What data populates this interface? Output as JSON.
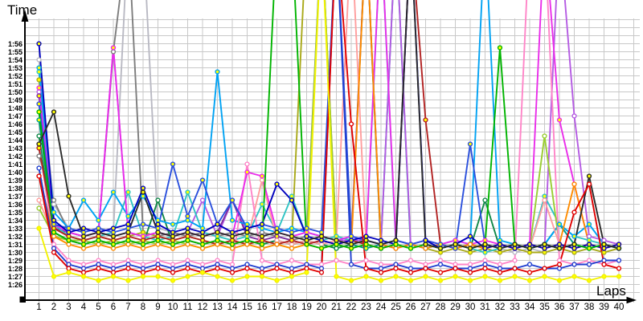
{
  "titles": {
    "y_axis": "Time",
    "x_axis": "Laps"
  },
  "colors": {
    "background": "#ffffff",
    "grid": "#c8c8c8",
    "axis": "#000000"
  },
  "chart_data": {
    "type": "line",
    "title": "",
    "xlabel": "Laps",
    "ylabel": "Time",
    "x_axis": {
      "min": 1,
      "max": 40,
      "tick_step": 1
    },
    "y_axis": {
      "unit": "m:ss",
      "min_seconds": 86,
      "max_seconds": 116,
      "min_label": "1:26",
      "max_label": "1:56",
      "grid_step_seconds": 1
    },
    "off_scale_value": 130,
    "grid": true,
    "legend": "none",
    "x_tick_labels": [
      "1",
      "2",
      "3",
      "4",
      "5",
      "6",
      "7",
      "8",
      "9",
      "10",
      "11",
      "12",
      "13",
      "14",
      "15",
      "16",
      "17",
      "18",
      "19",
      "20",
      "21",
      "22",
      "23",
      "24",
      "25",
      "26",
      "27",
      "28",
      "29",
      "30",
      "31",
      "32",
      "33",
      "34",
      "35",
      "36",
      "37",
      "38",
      "39",
      "40"
    ],
    "y_tick_labels": [
      "1:26",
      "1:27",
      "1:28",
      "1:29",
      "1:30",
      "1:31",
      "1:32",
      "1:33",
      "1:34",
      "1:35",
      "1:36",
      "1:37",
      "1:38",
      "1:39",
      "1:40",
      "1:41",
      "1:42",
      "1:43",
      "1:44",
      "1:45",
      "1:46",
      "1:47",
      "1:48",
      "1:49",
      "1:50",
      "1:51",
      "1:52",
      "1:53",
      "1:54",
      "1:55",
      "1:56"
    ],
    "series": [
      {
        "name": "silver",
        "color": "#b9b9c3",
        "marker_fill": "#ffffff",
        "values_seconds": [
          114,
          96,
          93,
          92.5,
          93,
          92.5,
          130,
          130,
          93,
          92.5,
          92,
          92.5,
          92,
          91.5,
          92,
          91.5,
          91,
          91.5,
          91,
          90.5,
          91,
          91.5,
          91,
          90.5,
          91,
          90.5,
          91,
          90.5,
          91,
          90.5,
          90,
          90.5,
          90,
          90.5,
          90,
          90.5,
          90,
          90.5,
          90,
          90.5
        ]
      },
      {
        "name": "gray",
        "color": "#7d7d7d",
        "marker_fill": "#ffffff",
        "values_seconds": [
          102,
          96.5,
          92.5,
          92,
          92.5,
          115,
          130,
          92.5,
          92,
          92.5,
          92,
          92.5,
          92,
          92.5,
          92,
          92.5,
          92,
          91.5,
          92,
          130,
          91.5,
          91,
          91.5,
          91,
          91.5,
          91,
          91.5,
          91,
          90.5,
          91,
          90.5,
          91,
          90.5,
          91,
          90.5,
          91,
          90.5,
          91,
          90.5,
          91
        ]
      },
      {
        "name": "olive",
        "color": "#a9a919",
        "marker_fill": "#ffff00",
        "values_seconds": [
          111.5,
          93,
          92,
          91.5,
          92,
          91.5,
          92,
          92.5,
          92,
          91.5,
          92,
          91.5,
          91,
          91.5,
          91,
          91.5,
          91,
          91.5,
          130,
          130,
          91.5,
          91,
          90.5,
          91,
          90.5,
          91,
          90.5,
          90,
          90.5,
          90,
          90.5,
          90,
          90.5,
          90,
          90,
          90.5,
          90,
          90.5,
          90,
          90.5
        ]
      },
      {
        "name": "teal",
        "color": "#009b8f",
        "marker_fill": "#ffff00",
        "values_seconds": [
          106.5,
          92.5,
          91.5,
          91,
          91.5,
          91,
          91.5,
          91,
          91.5,
          91,
          91.5,
          91,
          91.5,
          91,
          91.5,
          91,
          91.5,
          91,
          91.5,
          91,
          90.5,
          91,
          90.5,
          91,
          130,
          90.5,
          91,
          90.5,
          91,
          90.5,
          91,
          90.5,
          91,
          90.5,
          91,
          93.5,
          91,
          90.5,
          91,
          90.5
        ]
      },
      {
        "name": "darkgreen",
        "color": "#108848",
        "marker_fill": "#ffffff",
        "values_seconds": [
          104.5,
          92,
          91.5,
          91,
          91.5,
          91,
          91.5,
          91,
          96.5,
          91,
          91.5,
          91,
          91.5,
          91,
          91.5,
          91,
          91.5,
          91,
          91.5,
          91,
          90.5,
          91,
          130,
          90.5,
          91,
          90.5,
          91,
          90.5,
          91,
          90.5,
          96.5,
          90.5,
          91,
          90.5,
          91,
          90.5,
          91,
          90.5,
          91,
          90.5
        ]
      },
      {
        "name": "orchid",
        "color": "#b55ce3",
        "marker_fill": "#ffffff",
        "values_seconds": [
          110,
          93,
          92.5,
          92,
          92.5,
          115.5,
          92.5,
          92,
          92.5,
          92,
          92.5,
          96.5,
          92,
          96.5,
          92.5,
          92,
          92.5,
          92,
          92.5,
          92,
          91.5,
          91.5,
          91.5,
          91,
          130,
          91,
          90.5,
          91,
          90.5,
          91,
          90.5,
          91,
          90.5,
          91,
          90.5,
          130,
          107,
          92,
          91.5,
          91
        ]
      },
      {
        "name": "purple",
        "color": "#7e2ea0",
        "marker_fill": "#ffff00",
        "values_seconds": [
          109.5,
          93,
          92.5,
          92,
          92.5,
          92,
          92.5,
          92,
          92.5,
          92,
          92.5,
          92,
          92.5,
          96.5,
          92,
          91.5,
          92,
          91.5,
          91,
          91.5,
          91,
          91.5,
          130,
          91,
          90.5,
          91,
          90.5,
          91,
          90.5,
          91,
          90.5,
          91,
          90.5,
          91,
          90.5,
          91,
          90.5,
          91,
          90.5,
          91
        ]
      },
      {
        "name": "turquoise",
        "color": "#2fc4c4",
        "marker_fill": "#ffff00",
        "values_seconds": [
          112.5,
          93.5,
          92,
          91.5,
          92,
          92.5,
          97.5,
          92,
          91.5,
          92,
          97.5,
          92.5,
          92,
          91.5,
          92,
          96,
          92.5,
          97,
          92,
          91.5,
          92,
          91.5,
          91,
          130,
          91,
          90.5,
          91,
          90.5,
          91,
          90.5,
          90,
          90.5,
          91,
          90.5,
          97,
          93.5,
          92,
          91.5,
          91,
          90.5
        ]
      },
      {
        "name": "deepskyblue",
        "color": "#00a2f3",
        "marker_fill": "#ffff00",
        "values_seconds": [
          113,
          95,
          93,
          96.5,
          94,
          97.5,
          94.5,
          97,
          94,
          93.5,
          94,
          93,
          112.5,
          94,
          93.5,
          93,
          92.5,
          93,
          92.5,
          92,
          91.5,
          92,
          91.5,
          91,
          91.5,
          91,
          90.5,
          91,
          91.5,
          91,
          130,
          91.5,
          91,
          90.5,
          91,
          93.5,
          92,
          93.5,
          91,
          90.5
        ]
      },
      {
        "name": "salmon",
        "color": "#ff9e9e",
        "marker_fill": "#ffffff",
        "values_seconds": [
          96.5,
          92,
          91.5,
          91,
          91.5,
          91,
          91.5,
          91,
          91.5,
          91,
          91.5,
          91,
          91.5,
          91,
          91.5,
          99,
          91.5,
          91,
          91.5,
          91,
          91.5,
          130,
          91,
          90.5,
          91,
          90.5,
          91,
          90.5,
          91,
          90.5,
          91,
          90.5,
          91,
          90.5,
          96.5,
          91,
          90.5,
          91,
          90.5,
          91
        ]
      },
      {
        "name": "yellowgreen",
        "color": "#9acd32",
        "marker_fill": "#ffffff",
        "values_seconds": [
          95.5,
          92,
          91.5,
          91.5,
          91,
          91.5,
          91,
          91.5,
          91,
          91.5,
          91,
          90.5,
          91,
          90.5,
          91,
          90.5,
          91,
          90.5,
          91,
          130,
          91,
          90.5,
          91,
          90.5,
          91,
          90.5,
          91,
          90.5,
          91,
          90.5,
          91,
          90.5,
          91,
          90.5,
          104.5,
          91,
          90.5,
          91,
          90.5,
          91
        ]
      },
      {
        "name": "pink",
        "color": "#ff85c8",
        "marker_fill": "#ffffff",
        "values_seconds": [
          103.5,
          91,
          89,
          88.5,
          89,
          88.5,
          89,
          88.5,
          89,
          88.5,
          89,
          88.5,
          89,
          88.5,
          101,
          89,
          88.5,
          89,
          88.5,
          88.5,
          89,
          88.5,
          89,
          88.5,
          88.5,
          89,
          88.5,
          89,
          88.5,
          88.5,
          89,
          88.5,
          89,
          130,
          130,
          89,
          88.5,
          89,
          88.5,
          89
        ]
      },
      {
        "name": "magenta",
        "color": "#ea2dea",
        "marker_fill": "#ffff00",
        "values_seconds": [
          110.5,
          93.5,
          92.5,
          92,
          92.5,
          115.5,
          92.5,
          92,
          92.5,
          92,
          92.5,
          92,
          92.5,
          92,
          100,
          99.5,
          92.5,
          92,
          92.5,
          92,
          91.5,
          92,
          91.5,
          130,
          91.5,
          91,
          91.5,
          91,
          91.5,
          91,
          91.5,
          91,
          90.5,
          91,
          130,
          106.5,
          98.5,
          91,
          90.5,
          91
        ]
      },
      {
        "name": "firebrick",
        "color": "#b22222",
        "marker_fill": "#ffff00",
        "values_seconds": [
          103,
          93,
          92,
          91.5,
          92,
          91.5,
          92,
          91.5,
          92,
          91.5,
          92,
          91.5,
          91,
          91.5,
          91,
          91.5,
          91,
          91.5,
          91,
          91.5,
          91,
          91.5,
          91,
          90.5,
          91,
          130,
          106.5,
          91,
          90.5,
          91,
          90.5,
          91,
          90.5,
          91,
          90.5,
          91,
          90.5,
          91,
          90.5,
          91
        ]
      },
      {
        "name": "orange",
        "color": "#ff8c00",
        "marker_fill": "#ffffff",
        "values_seconds": [
          99.5,
          92,
          91,
          90.5,
          91,
          90.5,
          91,
          90.5,
          91,
          90.5,
          91,
          90.5,
          91,
          90.5,
          91,
          90.5,
          91,
          90.5,
          91,
          90.5,
          91,
          90.5,
          130,
          91,
          90.5,
          91,
          90.5,
          91,
          90.5,
          91,
          90.5,
          91,
          90.5,
          91,
          90.5,
          91,
          98.5,
          91,
          90.5,
          91
        ]
      },
      {
        "name": "royalblue",
        "color": "#2b50dd",
        "marker_fill": "#ffff00",
        "values_seconds": [
          108.5,
          93.5,
          93,
          92.5,
          93,
          92.5,
          93,
          93.5,
          93,
          101,
          94.5,
          99,
          93.5,
          96.5,
          93,
          93.5,
          93,
          92.5,
          93,
          92.5,
          130,
          92,
          91.5,
          91,
          91.5,
          91,
          91.5,
          91,
          90.5,
          103.5,
          91,
          90.5,
          91,
          90.5,
          91,
          90.5,
          91,
          90.5,
          91,
          90.5
        ]
      },
      {
        "name": "navy",
        "color": "#0000bd",
        "marker_fill": "#ffff00",
        "values_seconds": [
          116,
          94,
          92.5,
          93,
          92.5,
          93,
          93.5,
          98,
          93.5,
          92.5,
          93,
          92.5,
          93.5,
          92.5,
          93,
          93.5,
          98.5,
          96.5,
          92,
          91.5,
          91,
          91.5,
          92,
          91.5,
          91,
          130,
          91.5,
          90.5,
          91,
          92,
          90.5,
          91,
          90.5,
          91,
          90.5,
          91,
          90.5,
          91,
          90.5,
          91
        ]
      },
      {
        "name": "blue2",
        "color": "#1f3fd0",
        "marker_fill": "#ffffff",
        "values_seconds": [
          100.5,
          90.5,
          88.5,
          88,
          88.5,
          88,
          88.5,
          88,
          88.5,
          88,
          88.5,
          88,
          88.5,
          88,
          88.5,
          88,
          88.5,
          88,
          88.5,
          88,
          130,
          88.5,
          88,
          88,
          88.5,
          88,
          88,
          88.5,
          88,
          88,
          88.5,
          88,
          88,
          88.5,
          88,
          88,
          88.5,
          88.5,
          89,
          89
        ]
      },
      {
        "name": "green",
        "color": "#00b400",
        "marker_fill": "#ffff00",
        "values_seconds": [
          107.5,
          92.5,
          91.5,
          91,
          91.5,
          91,
          91.5,
          91,
          91.5,
          91,
          91.5,
          91,
          91.5,
          91,
          91.5,
          91,
          130,
          130,
          91,
          90.5,
          91,
          90.5,
          91,
          90.5,
          91,
          90.5,
          91,
          90.5,
          91,
          90.5,
          91,
          115.5,
          91,
          90.5,
          91,
          90.5,
          91,
          90.5,
          91,
          90.5
        ]
      },
      {
        "name": "black",
        "color": "#2b2b2b",
        "marker_fill": "#ffff00",
        "values_seconds": [
          103.5,
          107.5,
          97,
          92,
          92.5,
          92,
          92.5,
          97.5,
          92.5,
          92,
          92.5,
          92,
          92.5,
          92,
          92.5,
          92,
          92.5,
          92,
          91.5,
          92,
          91.5,
          91,
          91.5,
          91,
          91.5,
          130,
          91,
          90.5,
          91,
          90.5,
          91,
          90.5,
          91,
          90.5,
          91,
          90.5,
          91,
          99.5,
          91,
          90.5
        ]
      },
      {
        "name": "red",
        "color": "#e10000",
        "marker_fill": "#ffffff",
        "values_seconds": [
          99.5,
          90,
          88,
          87.5,
          88,
          87.5,
          88,
          87.5,
          88,
          87.5,
          88,
          87.5,
          88,
          87.5,
          88,
          87.5,
          88,
          87.5,
          88,
          87.5,
          130,
          106,
          88,
          87.5,
          88,
          87.5,
          88,
          87.5,
          88,
          87.5,
          88,
          87.5,
          88,
          87.5,
          88,
          88.5,
          95,
          98.5,
          88.5,
          88
        ]
      },
      {
        "name": "yellow",
        "color": "#f2f200",
        "marker_fill": "#ffff00",
        "values_seconds": [
          93,
          87,
          87.5,
          87,
          86.5,
          87,
          86.5,
          87,
          87,
          86.5,
          87,
          87.5,
          87,
          86.5,
          87,
          87,
          86.5,
          87,
          87.5,
          130,
          87,
          86.5,
          87,
          86.5,
          87,
          86.5,
          87,
          86.5,
          87,
          86.5,
          87,
          86.5,
          87,
          86.5,
          87,
          86.5,
          87,
          86.5,
          87,
          87
        ]
      }
    ]
  }
}
